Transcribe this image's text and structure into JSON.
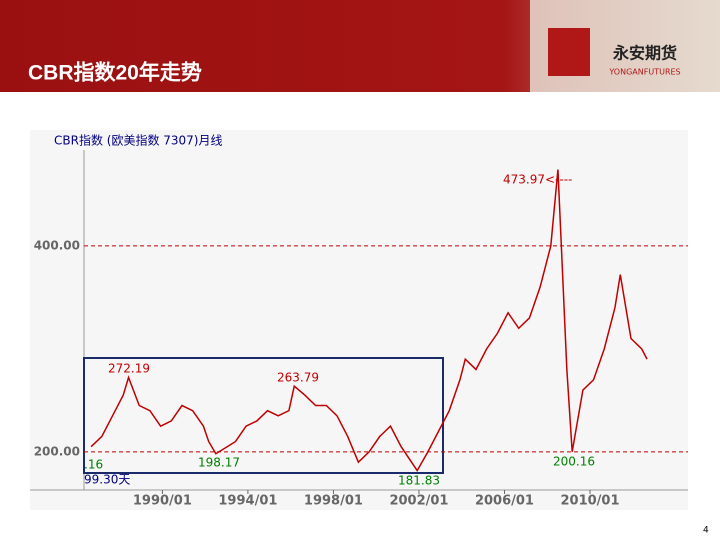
{
  "header": {
    "title": "CBR指数20年走势",
    "logo_cn": "永安期货",
    "logo_en": "YONGANFUTURES"
  },
  "page_number": "4",
  "chart_data": {
    "type": "line",
    "title": "CBR指数 (欧美指数 7307)月线",
    "x": [
      "1986/09",
      "1987/03",
      "1987/09",
      "1988/03",
      "1988/06",
      "1988/12",
      "1989/06",
      "1989/12",
      "1990/06",
      "1990/12",
      "1991/06",
      "1991/12",
      "1992/03",
      "1992/07",
      "1993/06",
      "1993/12",
      "1994/06",
      "1994/12",
      "1995/06",
      "1995/12",
      "1996/03",
      "1996/09",
      "1997/03",
      "1997/09",
      "1998/03",
      "1998/09",
      "1999/03",
      "1999/09",
      "2000/03",
      "2000/09",
      "2001/03",
      "2001/12",
      "2002/06",
      "2002/12",
      "2003/06",
      "2003/12",
      "2004/03",
      "2004/09",
      "2005/03",
      "2005/09",
      "2006/03",
      "2006/09",
      "2007/03",
      "2007/09",
      "2008/03",
      "2008/07",
      "2008/12",
      "2009/03",
      "2009/09",
      "2010/03",
      "2010/09",
      "2011/03",
      "2011/06",
      "2011/12",
      "2012/06",
      "2012/09"
    ],
    "series": [
      {
        "name": "CBR指数",
        "color": "#c00000",
        "values": [
          205,
          215,
          235,
          255,
          272.19,
          245,
          240,
          225,
          230,
          245,
          240,
          225,
          210,
          198.17,
          210,
          225,
          230,
          240,
          235,
          240,
          263.79,
          255,
          245,
          245,
          235,
          215,
          190,
          200,
          215,
          225,
          205,
          181.83,
          200,
          220,
          240,
          270,
          290,
          280,
          300,
          315,
          335,
          320,
          330,
          360,
          400,
          473.97,
          280,
          200.16,
          260,
          270,
          300,
          340,
          372,
          310,
          300,
          290
        ]
      }
    ],
    "xlim": [
      "1986/05",
      "2014/08"
    ],
    "xticks": [
      "1990/01",
      "1994/01",
      "1998/01",
      "2002/01",
      "2006/01",
      "2010/01"
    ],
    "ylim": [
      163,
      493
    ],
    "yticks": [
      {
        "value": 400,
        "label": "400.00"
      },
      {
        "value": 200,
        "label": "200.00"
      }
    ],
    "grid": true,
    "annotations": [
      {
        "text": "473.97<----"
      },
      {
        "text": "272.19"
      },
      {
        "text": "263.79"
      },
      {
        "text": "198.17"
      },
      {
        "text": "181.83"
      },
      {
        "text": "200.16"
      },
      {
        "text": ".16"
      },
      {
        "text": "99.30天"
      }
    ]
  }
}
